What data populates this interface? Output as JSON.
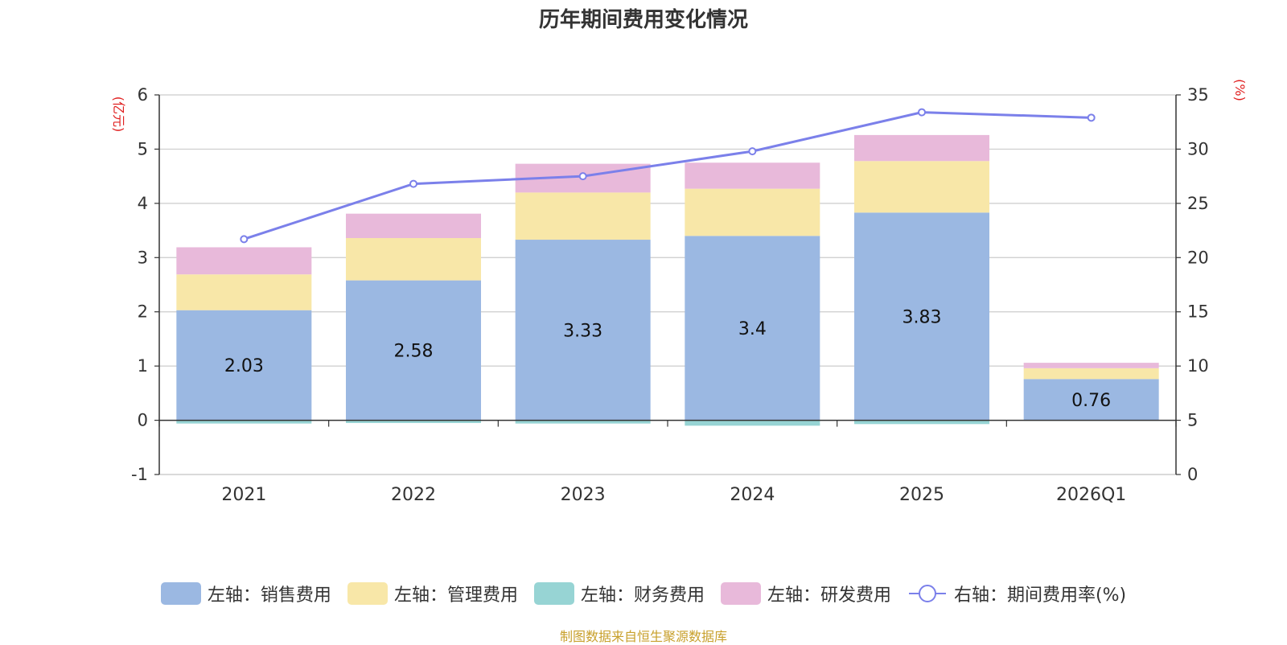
{
  "chart_data": {
    "type": "bar",
    "title": "历年期间费用变化情况",
    "categories": [
      "2021",
      "2022",
      "2023",
      "2024",
      "2025",
      "2026Q1"
    ],
    "left_axis": {
      "unit_label": "(亿元)",
      "ticks": [
        "-1",
        "0",
        "1",
        "2",
        "3",
        "4",
        "5",
        "6"
      ],
      "ylim": [
        -1,
        6
      ]
    },
    "right_axis": {
      "unit_label": "(%)",
      "ticks": [
        "0",
        "5",
        "10",
        "15",
        "20",
        "25",
        "30",
        "35"
      ],
      "ylim": [
        0,
        35
      ]
    },
    "series": [
      {
        "name": "左轴：销售费用",
        "axis": "left",
        "kind": "bar",
        "color": "#9bb8e2",
        "values": [
          2.03,
          2.58,
          3.33,
          3.4,
          3.83,
          0.76
        ],
        "labels": [
          "2.03",
          "2.58",
          "3.33",
          "3.4",
          "3.83",
          "0.76"
        ]
      },
      {
        "name": "左轴：管理费用",
        "axis": "left",
        "kind": "bar",
        "color": "#f8e7a8",
        "values": [
          0.66,
          0.78,
          0.87,
          0.87,
          0.95,
          0.2
        ]
      },
      {
        "name": "左轴：财务费用",
        "axis": "left",
        "kind": "bar",
        "color": "#97d4d4",
        "values": [
          -0.06,
          -0.05,
          -0.06,
          -0.1,
          -0.07,
          -0.01
        ]
      },
      {
        "name": "左轴：研发费用",
        "axis": "left",
        "kind": "bar",
        "color": "#e8b9da",
        "values": [
          0.5,
          0.45,
          0.53,
          0.48,
          0.48,
          0.1
        ]
      },
      {
        "name": "右轴：期间费用率(%)",
        "axis": "right",
        "kind": "line",
        "color": "#7b80ea",
        "values": [
          21.7,
          26.8,
          27.5,
          29.8,
          33.4,
          32.9
        ]
      }
    ]
  },
  "source": "制图数据来自恒生聚源数据库"
}
